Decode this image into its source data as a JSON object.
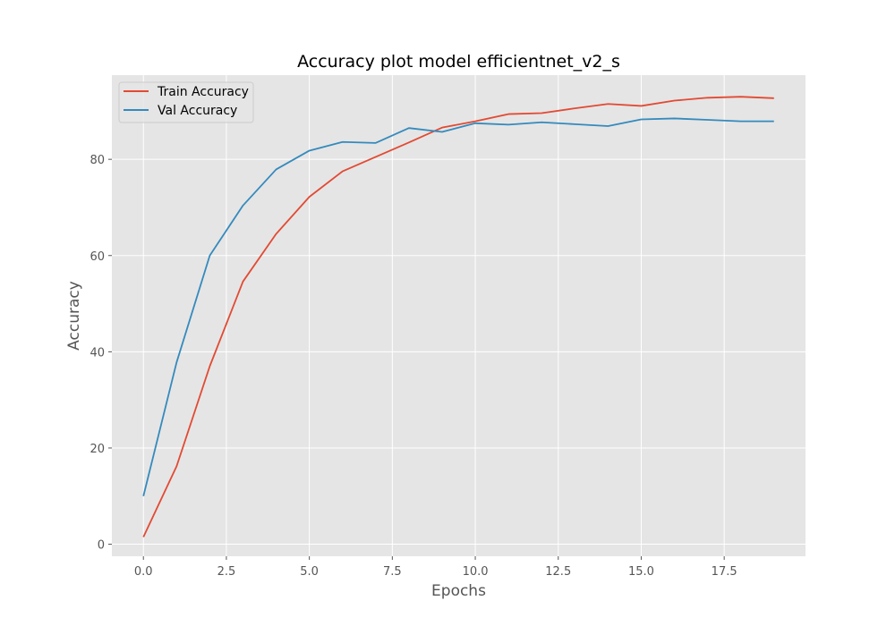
{
  "chart_data": {
    "type": "line",
    "title": "Accuracy plot model efficientnet_v2_s",
    "xlabel": "Epochs",
    "ylabel": "Accuracy",
    "xlim": [
      -0.95,
      19.95
    ],
    "ylim": [
      -2.5,
      97.5
    ],
    "xticks": [
      0,
      2.5,
      5,
      7.5,
      10,
      12.5,
      15,
      17.5
    ],
    "xtick_labels": [
      "0.0",
      "2.5",
      "5.0",
      "7.5",
      "10.0",
      "12.5",
      "15.0",
      "17.5"
    ],
    "yticks": [
      0,
      20,
      40,
      60,
      80
    ],
    "ytick_labels": [
      "0",
      "20",
      "40",
      "60",
      "80"
    ],
    "grid": true,
    "legend_position": "top-left",
    "x": [
      0,
      1,
      2,
      3,
      4,
      5,
      6,
      7,
      8,
      9,
      10,
      11,
      12,
      13,
      14,
      15,
      16,
      17,
      18,
      19
    ],
    "series": [
      {
        "name": "Train Accuracy",
        "color": "#e24a33",
        "values": [
          1.5,
          16.2,
          37.0,
          54.6,
          64.5,
          72.2,
          77.5,
          80.5,
          83.5,
          86.6,
          87.9,
          89.4,
          89.6,
          90.6,
          91.5,
          91.1,
          92.2,
          92.8,
          93.0,
          92.7
        ]
      },
      {
        "name": "Val Accuracy",
        "color": "#348abd",
        "values": [
          10.0,
          37.8,
          60.0,
          70.4,
          77.9,
          81.8,
          83.6,
          83.4,
          86.5,
          85.7,
          87.5,
          87.2,
          87.7,
          87.3,
          86.9,
          88.3,
          88.5,
          88.2,
          87.9,
          87.9
        ]
      }
    ]
  },
  "colors": {
    "plot_background": "#e5e5e5",
    "grid": "#ffffff",
    "tick_text": "#555555"
  }
}
